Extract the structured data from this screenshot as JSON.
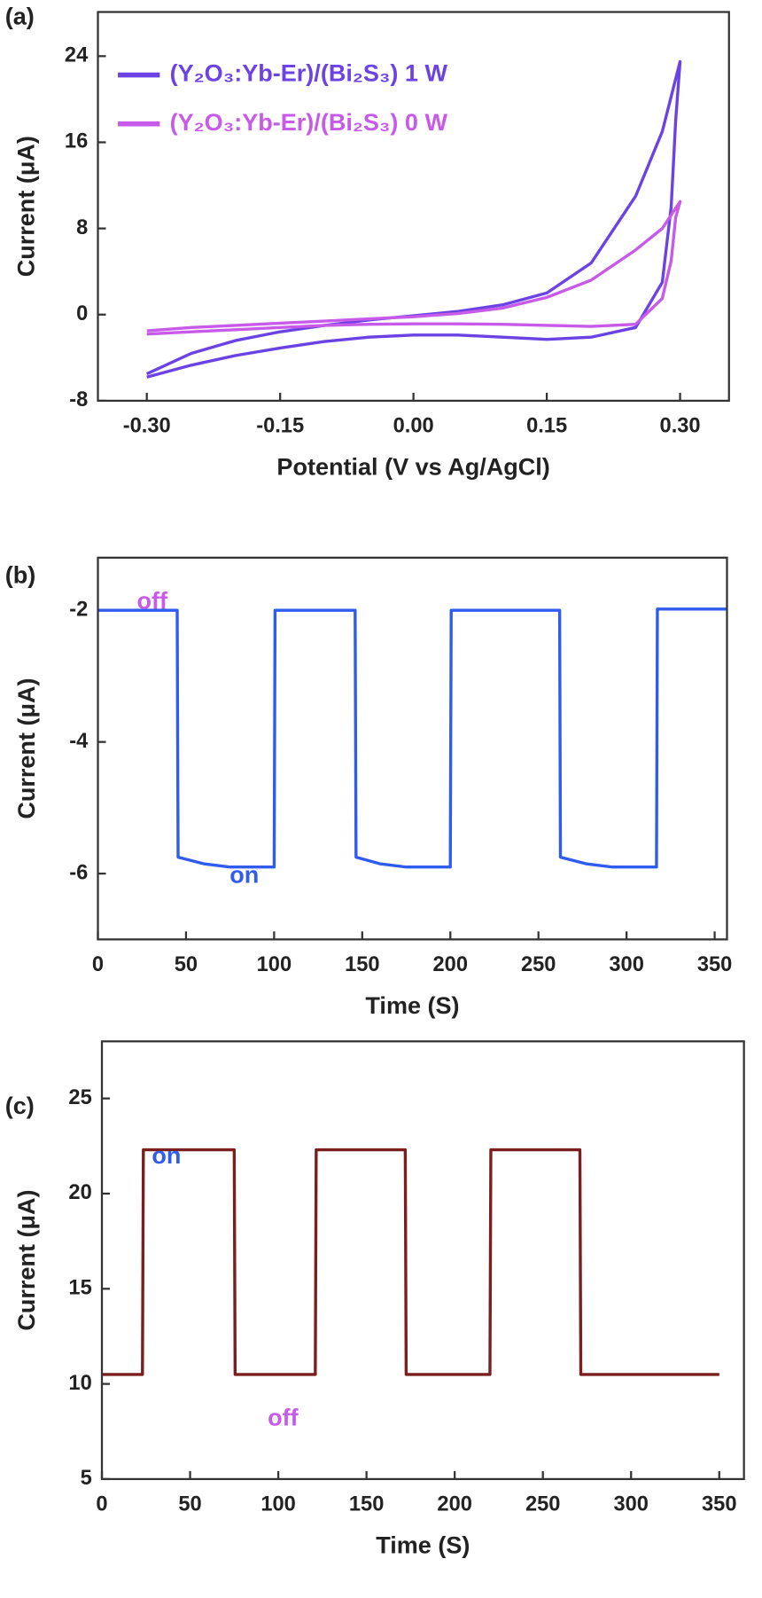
{
  "chart_data": [
    {
      "type": "line",
      "label": "(a)",
      "xlabel": "Potential (V vs Ag/AgCl)",
      "ylabel": "Current (μA)",
      "xlim": [
        -0.355,
        0.355
      ],
      "ylim": [
        -8,
        28.1
      ],
      "xticks": [
        {
          "value": -0.3,
          "label": "-0.30"
        },
        {
          "value": -0.15,
          "label": "-0.15"
        },
        {
          "value": 0,
          "label": "0.00"
        },
        {
          "value": 0.15,
          "label": "0.15"
        },
        {
          "value": 0.3,
          "label": "0.30"
        }
      ],
      "yticks": [
        -8,
        0,
        8,
        16,
        24
      ],
      "legend": "upper left",
      "series": [
        {
          "name": "(Y₂O₃:Yb-Er)/(Bi₂S₃)  1 W",
          "color": "#6b42e3",
          "x": [
            -0.3,
            -0.25,
            -0.2,
            -0.15,
            -0.1,
            -0.05,
            0,
            0.05,
            0.1,
            0.15,
            0.2,
            0.25,
            0.28,
            0.3,
            0.295,
            0.29,
            0.28,
            0.25,
            0.2,
            0.15,
            0.1,
            0.05,
            0,
            -0.05,
            -0.1,
            -0.15,
            -0.2,
            -0.25,
            -0.3
          ],
          "values": [
            -5.5,
            -3.6,
            -2.4,
            -1.6,
            -1,
            -0.5,
            -0.1,
            0.3,
            0.9,
            2,
            4.8,
            11,
            17,
            23.5,
            18,
            10,
            3,
            -1.2,
            -2.1,
            -2.3,
            -2.1,
            -1.9,
            -1.9,
            -2.1,
            -2.5,
            -3.1,
            -3.8,
            -4.7,
            -5.8
          ]
        },
        {
          "name": "(Y₂O₃:Yb-Er)/(Bi₂S₃)  0 W",
          "color": "#c75ae8",
          "x": [
            -0.3,
            -0.25,
            -0.2,
            -0.15,
            -0.1,
            -0.05,
            0,
            0.05,
            0.1,
            0.15,
            0.2,
            0.25,
            0.28,
            0.3,
            0.295,
            0.29,
            0.28,
            0.25,
            0.2,
            0.15,
            0.1,
            0.05,
            0,
            -0.05,
            -0.1,
            -0.15,
            -0.2,
            -0.25,
            -0.3
          ],
          "values": [
            -1.5,
            -1.2,
            -1,
            -0.8,
            -0.6,
            -0.4,
            -0.2,
            0.1,
            0.6,
            1.6,
            3.2,
            6,
            8,
            10.5,
            9,
            5,
            1.5,
            -0.9,
            -1.1,
            -1,
            -0.9,
            -0.85,
            -0.85,
            -0.9,
            -1,
            -1.2,
            -1.4,
            -1.6,
            -1.8
          ]
        }
      ]
    },
    {
      "type": "line",
      "label": "(b)",
      "xlabel": "Time (S)",
      "ylabel": "Current (μA)",
      "xlim": [
        0,
        357
      ],
      "ylim": [
        -7,
        -1.2
      ],
      "xticks": [
        0,
        50,
        100,
        150,
        200,
        250,
        300,
        350
      ],
      "yticks": [
        -6,
        -4,
        -2
      ],
      "series": [
        {
          "color": "#2f5bef",
          "x": [
            0,
            45,
            45.5,
            60,
            75,
            100,
            100.5,
            146,
            146.5,
            160,
            175,
            200,
            200.5,
            262,
            262.5,
            277,
            292,
            317,
            317.5,
            357
          ],
          "values": [
            -2,
            -2,
            -5.75,
            -5.85,
            -5.9,
            -5.9,
            -2,
            -2,
            -5.75,
            -5.85,
            -5.9,
            -5.9,
            -2,
            -2,
            -5.75,
            -5.85,
            -5.9,
            -5.9,
            -1.98,
            -1.98
          ]
        }
      ],
      "annotations": [
        {
          "text": "off",
          "color": "#c75ae8"
        },
        {
          "text": "on",
          "color": "#2f5bef"
        }
      ]
    },
    {
      "type": "line",
      "label": "(c)",
      "xlabel": "Time (S)",
      "ylabel": "Current (μA)",
      "xlim": [
        0,
        364
      ],
      "ylim": [
        5,
        28
      ],
      "xticks": [
        0,
        50,
        100,
        150,
        200,
        250,
        300,
        350
      ],
      "yticks": [
        5,
        10,
        15,
        20,
        25
      ],
      "series": [
        {
          "color": "#7a1e1e",
          "x": [
            0,
            23,
            23.5,
            75,
            75.5,
            121,
            121.5,
            172,
            172.5,
            220,
            220.5,
            271,
            271.5,
            350
          ],
          "values": [
            10.5,
            10.5,
            22.3,
            22.3,
            10.5,
            10.5,
            22.3,
            22.3,
            10.5,
            10.5,
            22.3,
            22.3,
            10.5,
            10.5
          ]
        }
      ],
      "annotations": [
        {
          "text": "on",
          "color": "#2f5bef"
        },
        {
          "text": "off",
          "color": "#c75ae8"
        }
      ]
    }
  ]
}
